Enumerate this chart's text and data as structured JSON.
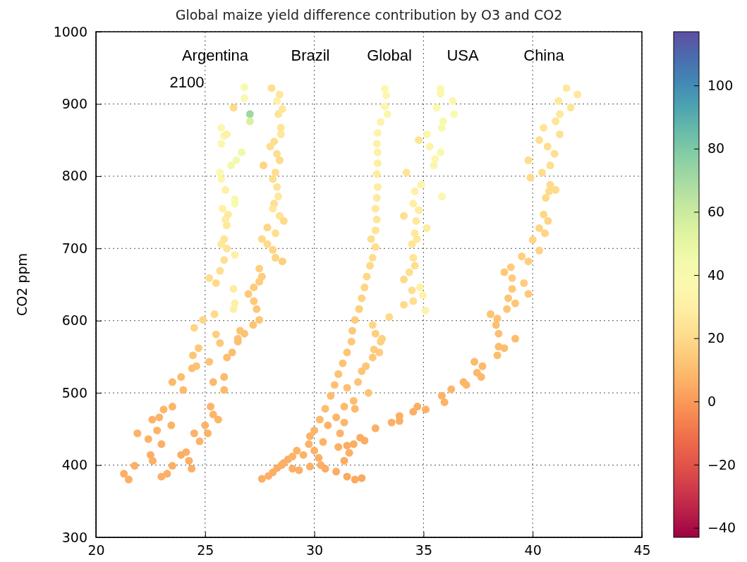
{
  "chart_data": {
    "type": "scatter",
    "title": "Global maize yield difference contribution by O3 and CO2",
    "ylabel": "CO2 ppm",
    "xlim": [
      20,
      45
    ],
    "ylim": [
      300,
      1000
    ],
    "xticks": [
      20,
      25,
      30,
      35,
      40,
      45
    ],
    "yticks": [
      300,
      400,
      500,
      600,
      700,
      800,
      900,
      1000
    ],
    "grid": true,
    "marker": "circle",
    "clim": [
      -43,
      117
    ],
    "cticks": [
      {
        "value": -40,
        "label": "−40"
      },
      {
        "value": -20,
        "label": "−20"
      },
      0,
      20,
      40,
      60,
      80,
      100
    ],
    "annotations": [
      "Argentina",
      "Brazil",
      "Global",
      "USA",
      "China",
      "2100"
    ],
    "x": [
      21.28,
      21.5,
      21.77,
      21.9,
      22.4,
      22.5,
      22.6,
      22.58,
      22.9,
      22.8,
      23.0,
      23.1,
      23.5,
      23.45,
      23.5,
      23.9,
      24.0,
      24.4,
      24.6,
      24.44,
      24.7,
      24.5,
      24.9,
      23.0,
      23.26,
      23.5,
      23.9,
      24.13,
      24.26,
      24.38,
      24.5,
      24.75,
      25.12,
      25.0,
      25.25,
      25.37,
      25.6,
      25.37,
      25.87,
      25.87,
      26.0,
      26.24,
      26.5,
      26.6,
      26.5,
      26.8,
      27.2,
      27.48,
      27.36,
      27.23,
      26.98,
      27.23,
      27.48,
      27.6,
      27.48,
      25.43,
      25.5,
      25.68,
      25.19,
      25.19,
      25.5,
      25.68,
      25.87,
      25.99,
      25.74,
      25.87,
      25.99,
      25.93,
      25.8,
      26.05,
      25.93,
      25.74,
      25.68,
      25.87,
      25.74,
      25.74,
      25.99,
      26.36,
      26.3,
      26.36,
      26.3,
      26.36,
      26.36,
      26.18,
      26.43,
      26.67,
      26.8,
      26.8,
      26.3,
      27.05,
      27.05,
      28.04,
      28.41,
      28.29,
      28.54,
      28.35,
      28.47,
      28.47,
      28.16,
      27.98,
      28.29,
      28.41,
      27.67,
      28.22,
      28.1,
      28.29,
      28.35,
      28.16,
      28.1,
      28.41,
      28.6,
      27.85,
      28.22,
      27.6,
      27.85,
      28.1,
      28.22,
      28.54,
      27.6,
      27.9,
      28.1,
      28.3,
      28.5,
      28.8,
      29.0,
      29.2,
      28.6,
      29.0,
      29.3,
      29.8,
      30.3,
      30.0,
      30.4,
      29.8,
      30.2,
      29.5,
      29.75,
      30.0,
      30.25,
      30.5,
      30.75,
      30.93,
      31.1,
      31.3,
      31.5,
      31.7,
      31.74,
      31.86,
      32.05,
      32.17,
      32.3,
      32.4,
      32.55,
      32.67,
      32.8,
      32.6,
      32.8,
      32.86,
      32.8,
      32.86,
      32.9,
      32.86,
      32.9,
      32.9,
      32.86,
      32.9,
      33.04,
      33.23,
      33.35,
      33.3,
      33.23,
      30.5,
      31.0,
      31.5,
      31.86,
      32.17,
      31.37,
      31.6,
      31.1,
      30.62,
      31.0,
      31.37,
      31.18,
      31.37,
      31.8,
      31.86,
      31.5,
      32.0,
      32.17,
      32.36,
      32.48,
      32.67,
      32.73,
      32.98,
      33.04,
      32.8,
      33.1,
      32.67,
      33.43,
      34.1,
      34.53,
      34.47,
      34.1,
      34.35,
      34.6,
      34.53,
      34.47,
      34.6,
      34.7,
      34.66,
      35.15,
      34.1,
      34.78,
      34.53,
      34.6,
      34.9,
      34.22,
      34.84,
      34.97,
      35.09,
      35.84,
      35.47,
      35.53,
      35.78,
      35.28,
      35.16,
      34.78,
      35.84,
      35.9,
      35.6,
      36.4,
      36.34,
      35.78,
      35.78,
      31.5,
      31.8,
      32.1,
      32.3,
      32.8,
      33.54,
      33.9,
      33.9,
      34.53,
      34.72,
      35.1,
      35.84,
      35.96,
      36.27,
      36.83,
      36.96,
      37.33,
      37.45,
      37.7,
      37.64,
      38.38,
      38.44,
      38.7,
      39.2,
      38.44,
      38.32,
      38.07,
      38.38,
      38.82,
      39.2,
      38.88,
      39.06,
      39.06,
      38.7,
      39.0,
      39.8,
      39.6,
      39.8,
      39.5,
      40.0,
      40.3,
      40.56,
      40.3,
      40.5,
      40.7,
      40.6,
      40.75,
      41.05,
      40.8,
      40.43,
      39.9,
      40.8,
      39.8,
      41.0,
      40.68,
      40.3,
      40.5,
      41.24,
      41.05,
      41.24,
      41.18,
      41.74,
      41.55,
      42.05
    ],
    "values": [
      388,
      380,
      399,
      444,
      436,
      414,
      406,
      463,
      466,
      448,
      429,
      477,
      481,
      455,
      515,
      522,
      504,
      534,
      537,
      552,
      562,
      590,
      601,
      384,
      388,
      399,
      414,
      418,
      406,
      395,
      444,
      433,
      444,
      455,
      481,
      470,
      463,
      515,
      504,
      522,
      549,
      556,
      571,
      586,
      575,
      582,
      594,
      601,
      616,
      627,
      637,
      646,
      654,
      661,
      672,
      609,
      581,
      569,
      543,
      659,
      652,
      669,
      684,
      700,
      706,
      713,
      732,
      740,
      755,
      747,
      781,
      796,
      805,
      856,
      845,
      867,
      858,
      691,
      644,
      624,
      616,
      768,
      762,
      815,
      822,
      833,
      923,
      908,
      895,
      886,
      876,
      922,
      913,
      904,
      893,
      886,
      867,
      858,
      848,
      841,
      831,
      822,
      815,
      805,
      796,
      785,
      772,
      762,
      755,
      745,
      738,
      729,
      721,
      713,
      706,
      698,
      687,
      682,
      381,
      385,
      390,
      396,
      400,
      408,
      412,
      420,
      403,
      395,
      393,
      398,
      400,
      420,
      432,
      440,
      410,
      414,
      429,
      448,
      463,
      478,
      496,
      511,
      526,
      541,
      556,
      571,
      586,
      601,
      616,
      631,
      646,
      661,
      676,
      687,
      702,
      713,
      725,
      740,
      755,
      770,
      785,
      803,
      818,
      833,
      845,
      860,
      875,
      897,
      886,
      912,
      921,
      395,
      391,
      384,
      380,
      382,
      406,
      417,
      425,
      455,
      466,
      459,
      444,
      481,
      489,
      478,
      507,
      515,
      530,
      537,
      500,
      549,
      560,
      556,
      571,
      582,
      575,
      594,
      605,
      622,
      627,
      642,
      657,
      667,
      676,
      687,
      706,
      721,
      713,
      738,
      728,
      745,
      753,
      762,
      779,
      788,
      805,
      646,
      635,
      614,
      772,
      815,
      824,
      833,
      841,
      858,
      850,
      867,
      876,
      895,
      886,
      904,
      914,
      921,
      427,
      429,
      438,
      434,
      451,
      459,
      468,
      461,
      474,
      481,
      477,
      496,
      487,
      505,
      515,
      511,
      543,
      528,
      537,
      522,
      552,
      564,
      562,
      575,
      582,
      594,
      609,
      603,
      616,
      624,
      631,
      644,
      659,
      667,
      674,
      637,
      652,
      682,
      689,
      712,
      697,
      721,
      728,
      747,
      738,
      770,
      779,
      781,
      788,
      805,
      798,
      815,
      822,
      831,
      841,
      850,
      867,
      858,
      876,
      886,
      904,
      895,
      922,
      913
    ],
    "cvalues": [
      6,
      6,
      6,
      7,
      7,
      6,
      6,
      7,
      7,
      7,
      6,
      8,
      8,
      7,
      9,
      10,
      9,
      11,
      12,
      13,
      14,
      18,
      18,
      6,
      6,
      6,
      6,
      6,
      6,
      6,
      7,
      7,
      7,
      7,
      8,
      8,
      8,
      9,
      9,
      9,
      10,
      10,
      11,
      12,
      11,
      12,
      12,
      13,
      13,
      14,
      14,
      15,
      15,
      15,
      16,
      20,
      16,
      14,
      12,
      22,
      20,
      22,
      22,
      24,
      26,
      24,
      26,
      28,
      30,
      27,
      30,
      36,
      38,
      40,
      36,
      36,
      30,
      30,
      28,
      30,
      30,
      42,
      40,
      44,
      44,
      46,
      42,
      42,
      20,
      72,
      55,
      22,
      26,
      30,
      26,
      24,
      24,
      26,
      22,
      22,
      22,
      20,
      18,
      22,
      22,
      24,
      26,
      22,
      26,
      24,
      20,
      18,
      22,
      20,
      20,
      18,
      18,
      16,
      6,
      6,
      6,
      6,
      6,
      6,
      7,
      7,
      6,
      6,
      6,
      6,
      6,
      7,
      7,
      7,
      6,
      7,
      7,
      8,
      9,
      10,
      10,
      11,
      12,
      12,
      13,
      14,
      14,
      15,
      16,
      17,
      18,
      19,
      20,
      21,
      22,
      22,
      24,
      25,
      26,
      27,
      28,
      28,
      29,
      30,
      30,
      32,
      33,
      34,
      34,
      35,
      36,
      5,
      5,
      4,
      4,
      4,
      5,
      6,
      6,
      7,
      8,
      8,
      7,
      9,
      10,
      9,
      11,
      12,
      13,
      13,
      12,
      14,
      15,
      15,
      16,
      16,
      17,
      18,
      20,
      20,
      22,
      22,
      20,
      22,
      22,
      24,
      24,
      26,
      26,
      26,
      28,
      22,
      28,
      30,
      30,
      32,
      24,
      30,
      32,
      32,
      36,
      34,
      36,
      40,
      32,
      34,
      24,
      40,
      42,
      36,
      38,
      34,
      34,
      36,
      5,
      5,
      5,
      5,
      6,
      6,
      6,
      6,
      6,
      6,
      7,
      7,
      7,
      8,
      8,
      8,
      9,
      9,
      9,
      9,
      10,
      10,
      10,
      10,
      11,
      11,
      12,
      12,
      13,
      13,
      13,
      14,
      15,
      14,
      15,
      14,
      15,
      16,
      16,
      18,
      17,
      18,
      18,
      19,
      18,
      20,
      20,
      20,
      20,
      21,
      20,
      22,
      21,
      22,
      22,
      22,
      24,
      23,
      24,
      26,
      26,
      24,
      26,
      26
    ]
  }
}
